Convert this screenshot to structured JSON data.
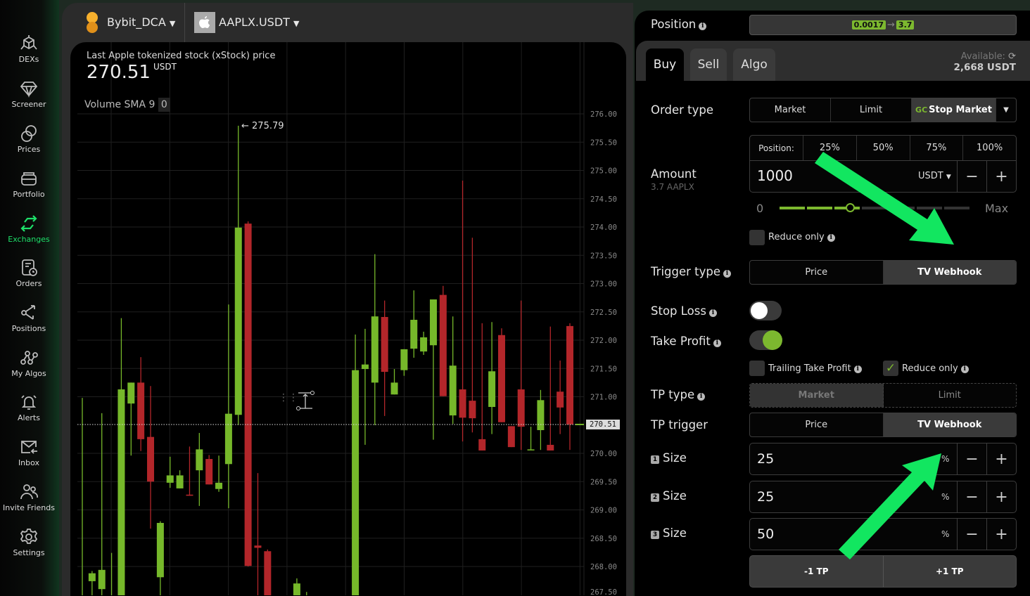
{
  "sidebar": {
    "items": [
      {
        "label": "DEXs",
        "icon": "cube-icon"
      },
      {
        "label": "Screener",
        "icon": "diamond-icon"
      },
      {
        "label": "Prices",
        "icon": "coins-icon"
      },
      {
        "label": "Portfolio",
        "icon": "wallet-icon"
      },
      {
        "label": "Exchanges",
        "icon": "exchange-arrows-icon",
        "active": true
      },
      {
        "label": "Orders",
        "icon": "orders-icon"
      },
      {
        "label": "Positions",
        "icon": "share-icon"
      },
      {
        "label": "My Algos",
        "icon": "algos-icon"
      },
      {
        "label": "Alerts",
        "icon": "bell-icon"
      },
      {
        "label": "Inbox",
        "icon": "mail-icon"
      },
      {
        "label": "Invite Friends",
        "icon": "users-icon"
      },
      {
        "label": "Settings",
        "icon": "gear-icon"
      }
    ]
  },
  "header": {
    "account": "Bybit_DCA",
    "pair": "AAPLX.USDT"
  },
  "chart": {
    "title": "Last Apple tokenized stock (xStock) price",
    "price": "270.51",
    "unit": "USDT",
    "indicator": "Volume SMA 9",
    "indicator_value": "0",
    "high_marker": "← 275.79",
    "current_price_label": "270.51"
  },
  "chart_data": {
    "type": "candlestick",
    "ylim": [
      267.5,
      276.25
    ],
    "y_ticks": [
      "276.00",
      "275.50",
      "275.00",
      "274.50",
      "274.00",
      "273.50",
      "273.00",
      "272.50",
      "272.00",
      "271.50",
      "271.00",
      "270.00",
      "269.50",
      "269.00",
      "268.50",
      "268.00",
      "267.50"
    ],
    "current_price": 270.51,
    "colors": {
      "up": "#76b82a",
      "down": "#b3262a"
    },
    "candles": [
      [
        266.8,
        270.98,
        266.5,
        267.3
      ],
      [
        267.74,
        267.92,
        266.9,
        267.88
      ],
      [
        267.6,
        270.71,
        267.3,
        267.94
      ],
      [
        266.9,
        268.24,
        266.7,
        267.2
      ],
      [
        266.8,
        272.39,
        266.5,
        271.13
      ],
      [
        270.88,
        271.25,
        269.96,
        271.25
      ],
      [
        271.25,
        271.7,
        270.04,
        270.25
      ],
      [
        270.29,
        271.19,
        268.67,
        269.5
      ],
      [
        267.81,
        268.8,
        267.3,
        268.77
      ],
      [
        269.48,
        269.94,
        269.39,
        269.61
      ],
      [
        269.38,
        269.7,
        269.38,
        269.61
      ],
      [
        269.27,
        270.12,
        269.25,
        269.25
      ],
      [
        269.7,
        270.36,
        269.07,
        270.07
      ],
      [
        269.9,
        269.97,
        269.45,
        269.45
      ],
      [
        269.37,
        269.96,
        269.32,
        269.48
      ],
      [
        269.81,
        272.63,
        269.03,
        270.7
      ],
      [
        270.68,
        275.79,
        270.5,
        273.99
      ],
      [
        274.06,
        274.1,
        268.0,
        268.01
      ],
      [
        268.37,
        269.65,
        267.0,
        268.33
      ],
      [
        268.27,
        268.3,
        266.5,
        266.8
      ],
      null,
      null,
      [
        266.8,
        267.79,
        266.5,
        267.7
      ],
      [
        266.9,
        267.55,
        266.7,
        267.3
      ],
      null,
      null,
      null,
      null,
      [
        266.8,
        272.1,
        266.5,
        271.47
      ],
      [
        271.49,
        272.2,
        270.15,
        271.57
      ],
      [
        271.25,
        273.52,
        270.5,
        272.42
      ],
      [
        272.41,
        272.7,
        270.66,
        271.44
      ],
      [
        271.04,
        271.49,
        271.04,
        271.25
      ],
      [
        271.47,
        271.84,
        271.37,
        271.84
      ],
      [
        271.85,
        272.88,
        271.69,
        272.36
      ],
      [
        271.8,
        272.15,
        271.74,
        272.05
      ],
      [
        271.91,
        272.72,
        270.24,
        272.72
      ],
      [
        272.8,
        272.96,
        271.01,
        271.01
      ],
      [
        270.67,
        272.42,
        270.52,
        271.55
      ],
      [
        271.13,
        274.82,
        270.21,
        270.63
      ],
      [
        270.93,
        273.81,
        270.37,
        270.62
      ],
      [
        270.25,
        272.3,
        270.05,
        270.05
      ],
      [
        270.82,
        272.32,
        270.34,
        271.45
      ],
      [
        272.09,
        272.21,
        270.55,
        270.55
      ],
      [
        270.48,
        270.48,
        270.11,
        270.11
      ],
      [
        271.13,
        272.7,
        270.06,
        270.47
      ],
      [
        270.06,
        270.47,
        270.06,
        270.07
      ],
      [
        270.41,
        271.12,
        270.06,
        270.94
      ],
      [
        270.15,
        272.24,
        270.05,
        270.05
      ],
      [
        271.09,
        271.64,
        270.34,
        270.81
      ],
      [
        272.25,
        272.3,
        270.06,
        270.51
      ]
    ]
  },
  "panel": {
    "position_label": "Position",
    "position_from": "0.0017",
    "position_to": "3.7",
    "tabs": [
      {
        "label": "Buy",
        "active": true
      },
      {
        "label": "Sell"
      },
      {
        "label": "Algo"
      }
    ],
    "available_label": "Available:",
    "available_value": "2,668 USDT",
    "order_type_label": "Order type",
    "order_types": [
      "Market",
      "Limit",
      "Stop Market"
    ],
    "order_type_selected": "Stop Market",
    "amount_label": "Amount",
    "amount_sub": "3.7 AAPLX",
    "position_presets_label": "Position:",
    "position_presets": [
      "25%",
      "50%",
      "75%",
      "100%"
    ],
    "amount_value": "1000",
    "amount_unit": "USDT",
    "slider_min": "0",
    "slider_max": "Max",
    "slider_fraction": 0.37,
    "reduce_only": "Reduce only",
    "reduce_only_checked": false,
    "trigger_type_label": "Trigger type",
    "trigger_options": [
      "Price",
      "TV Webhook"
    ],
    "trigger_selected": "TV Webhook",
    "stop_loss_label": "Stop Loss",
    "stop_loss_on": false,
    "take_profit_label": "Take Profit",
    "take_profit_on": true,
    "trailing_tp": "Trailing Take Profit",
    "trailing_tp_checked": false,
    "tp_reduce_only": "Reduce only",
    "tp_reduce_only_checked": true,
    "tp_type_label": "TP type",
    "tp_type_options": [
      "Market",
      "Limit"
    ],
    "tp_trigger_label": "TP trigger",
    "tp_trigger_options": [
      "Price",
      "TV Webhook"
    ],
    "sizes": [
      {
        "num": "1",
        "label": "Size",
        "value": "25",
        "unit": "%"
      },
      {
        "num": "2",
        "label": "Size",
        "value": "25",
        "unit": "%"
      },
      {
        "num": "3",
        "label": "Size",
        "value": "50",
        "unit": "%"
      }
    ],
    "minus_tp": "-1 TP",
    "plus_tp": "+1 TP"
  },
  "annotation_color": "#12e660"
}
